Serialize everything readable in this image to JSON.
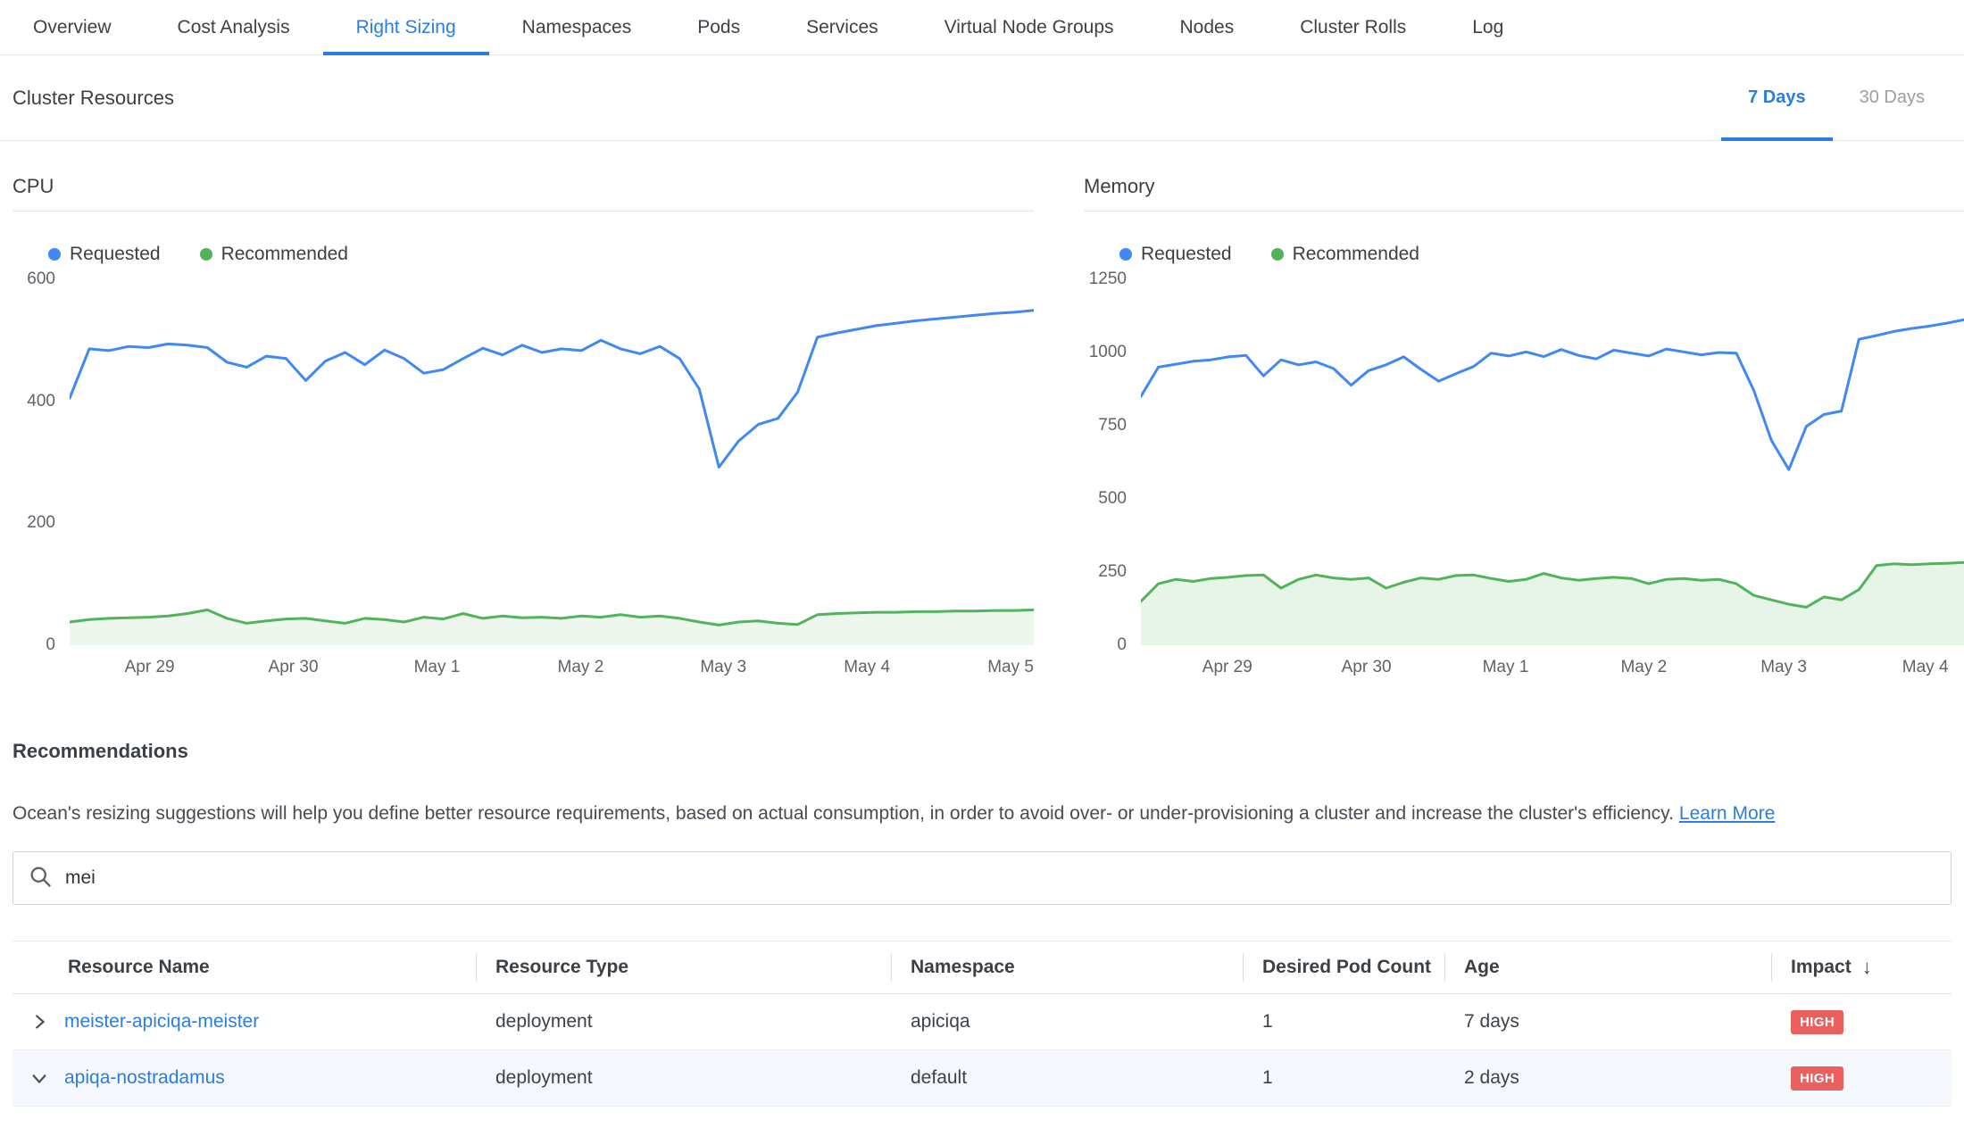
{
  "active_tab": "Right Sizing",
  "tabs": [
    {
      "label": "Overview"
    },
    {
      "label": "Cost Analysis"
    },
    {
      "label": "Right Sizing"
    },
    {
      "label": "Namespaces"
    },
    {
      "label": "Pods"
    },
    {
      "label": "Services"
    },
    {
      "label": "Virtual Node Groups"
    },
    {
      "label": "Nodes"
    },
    {
      "label": "Cluster Rolls"
    },
    {
      "label": "Log"
    }
  ],
  "colors": {
    "accent": "#2a7de2",
    "requested_line": "#3f88f5",
    "recommended_line": "#52b45a",
    "badge_high": "#e9605f"
  },
  "cluster_resources": {
    "title": "Cluster Resources",
    "ranges": [
      {
        "label": "7 Days",
        "active": true
      },
      {
        "label": "30 Days",
        "active": false
      }
    ]
  },
  "chart_data": [
    {
      "type": "line",
      "title": "CPU",
      "ylim": [
        0,
        600
      ],
      "yticks": [
        0,
        200,
        400,
        600
      ],
      "grid": false,
      "legend_position": "top-left",
      "xticks": [
        {
          "label": "Apr 29",
          "pos": 0.083
        },
        {
          "label": "Apr 30",
          "pos": 0.232
        },
        {
          "label": "May 1",
          "pos": 0.381
        },
        {
          "label": "May 2",
          "pos": 0.53
        },
        {
          "label": "May 3",
          "pos": 0.678
        },
        {
          "label": "May 4",
          "pos": 0.827
        },
        {
          "label": "May 5",
          "pos": 0.976
        }
      ],
      "series": [
        {
          "name": "Requested",
          "color": "#3f88f5",
          "fill": false,
          "values": [
            405,
            486,
            483,
            490,
            488,
            494,
            492,
            488,
            464,
            456,
            474,
            470,
            434,
            466,
            480,
            460,
            484,
            470,
            446,
            452,
            470,
            487,
            476,
            492,
            480,
            486,
            483,
            500,
            486,
            478,
            490,
            470,
            420,
            292,
            335,
            362,
            372,
            415,
            505,
            512,
            518,
            524,
            528,
            532,
            535,
            538,
            541,
            544,
            546,
            549
          ]
        },
        {
          "name": "Recommended",
          "color": "#52b45a",
          "fill": true,
          "fill_color": "rgba(82,180,90,0.10)",
          "values": [
            38,
            42,
            44,
            45,
            46,
            48,
            52,
            58,
            44,
            36,
            40,
            43,
            44,
            40,
            36,
            44,
            42,
            38,
            46,
            43,
            52,
            44,
            48,
            45,
            46,
            44,
            48,
            46,
            50,
            46,
            48,
            44,
            38,
            33,
            38,
            40,
            36,
            34,
            50,
            52,
            53,
            54,
            54,
            55,
            55,
            56,
            56,
            57,
            57,
            58
          ]
        }
      ]
    },
    {
      "type": "line",
      "title": "Memory",
      "ylim": [
        0,
        1250
      ],
      "yticks": [
        0,
        250,
        500,
        750,
        1000,
        1250
      ],
      "grid": false,
      "legend_position": "top-left",
      "xticks": [
        {
          "label": "Apr 29",
          "pos": 0.105
        },
        {
          "label": "Apr 30",
          "pos": 0.274
        },
        {
          "label": "May 1",
          "pos": 0.443
        },
        {
          "label": "May 2",
          "pos": 0.611
        },
        {
          "label": "May 3",
          "pos": 0.781
        },
        {
          "label": "May 4",
          "pos": 0.953
        }
      ],
      "series": [
        {
          "name": "Requested",
          "color": "#3f88f5",
          "fill": false,
          "values": [
            850,
            950,
            960,
            970,
            975,
            985,
            990,
            920,
            975,
            958,
            968,
            945,
            888,
            938,
            958,
            985,
            942,
            902,
            928,
            952,
            998,
            988,
            1002,
            986,
            1010,
            990,
            978,
            1008,
            998,
            988,
            1012,
            1002,
            992,
            1000,
            998,
            870,
            700,
            600,
            748,
            788,
            800,
            1045,
            1058,
            1072,
            1082,
            1090,
            1100,
            1112
          ]
        },
        {
          "name": "Recommended",
          "color": "#52b45a",
          "fill": true,
          "fill_color": "rgba(82,180,90,0.14)",
          "values": [
            150,
            210,
            225,
            218,
            228,
            232,
            238,
            240,
            195,
            225,
            240,
            230,
            225,
            230,
            195,
            215,
            230,
            225,
            238,
            240,
            228,
            218,
            225,
            245,
            230,
            222,
            228,
            232,
            228,
            210,
            225,
            228,
            222,
            225,
            210,
            170,
            155,
            140,
            130,
            165,
            155,
            190,
            272,
            278,
            275,
            278,
            280,
            283
          ]
        }
      ]
    }
  ],
  "recommendations": {
    "title": "Recommendations",
    "description": "Ocean's resizing suggestions will help you define better resource requirements, based on actual consumption, in order to avoid over- or under-provisioning a cluster and increase the cluster's efficiency.",
    "learn_more": "Learn More",
    "search_value": "mei",
    "sort_icon": "↓",
    "table": {
      "columns": [
        "Resource Name",
        "Resource Type",
        "Namespace",
        "Desired Pod Count",
        "Age",
        "Impact"
      ],
      "sort_column": "Impact",
      "rows": [
        {
          "name": "meister-apiciqa-meister",
          "type": "deployment",
          "namespace": "apiciqa",
          "pods": "1",
          "age": "7 days",
          "impact": "HIGH",
          "expanded": false
        },
        {
          "name": "apiqa-nostradamus",
          "type": "deployment",
          "namespace": "default",
          "pods": "1",
          "age": "2 days",
          "impact": "HIGH",
          "expanded": true
        }
      ]
    }
  }
}
